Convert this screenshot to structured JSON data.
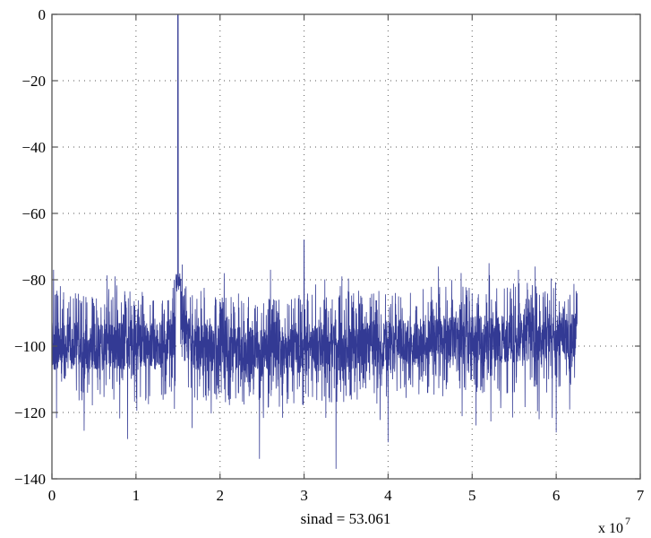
{
  "chart_data": {
    "type": "line",
    "title": "",
    "xlabel": "sinad = 53.061",
    "x_exponent_label": "x 10",
    "x_exponent": "7",
    "ylabel": "",
    "xlim": [
      0,
      7
    ],
    "ylim": [
      -140,
      0
    ],
    "xticks": [
      "0",
      "1",
      "2",
      "3",
      "4",
      "5",
      "6",
      "7"
    ],
    "yticks": [
      "0",
      "−20",
      "−40",
      "−60",
      "−80",
      "−100",
      "−120",
      "−140"
    ],
    "grid": true,
    "line_color": "#333a94",
    "x_data_range": [
      0,
      6.25
    ],
    "features": {
      "carrier": {
        "x": 1.5,
        "y": 0
      },
      "spur": {
        "x": 3.0,
        "y": -68
      },
      "noise_floor": [
        {
          "x": 0,
          "y": -100
        },
        {
          "x": 1.35,
          "y": -100
        },
        {
          "x": 1.5,
          "y": -95
        },
        {
          "x": 1.7,
          "y": -100
        },
        {
          "x": 2.5,
          "y": -102
        },
        {
          "x": 4.0,
          "y": -99
        },
        {
          "x": 6.25,
          "y": -97
        }
      ],
      "noise_spread_db": 12,
      "notable_spikes": [
        {
          "x": 0.02,
          "y": -77
        },
        {
          "x": 0.75,
          "y": -79
        },
        {
          "x": 2.05,
          "y": -78
        },
        {
          "x": 2.6,
          "y": -77
        },
        {
          "x": 3.45,
          "y": -79
        },
        {
          "x": 4.6,
          "y": -76
        },
        {
          "x": 5.2,
          "y": -75
        },
        {
          "x": 5.55,
          "y": -77
        },
        {
          "x": 5.75,
          "y": -76
        },
        {
          "x": 3.38,
          "y": -137
        },
        {
          "x": 2.47,
          "y": -134
        },
        {
          "x": 0.9,
          "y": -128
        },
        {
          "x": 4.0,
          "y": -129
        },
        {
          "x": 6.0,
          "y": -126
        }
      ]
    }
  }
}
